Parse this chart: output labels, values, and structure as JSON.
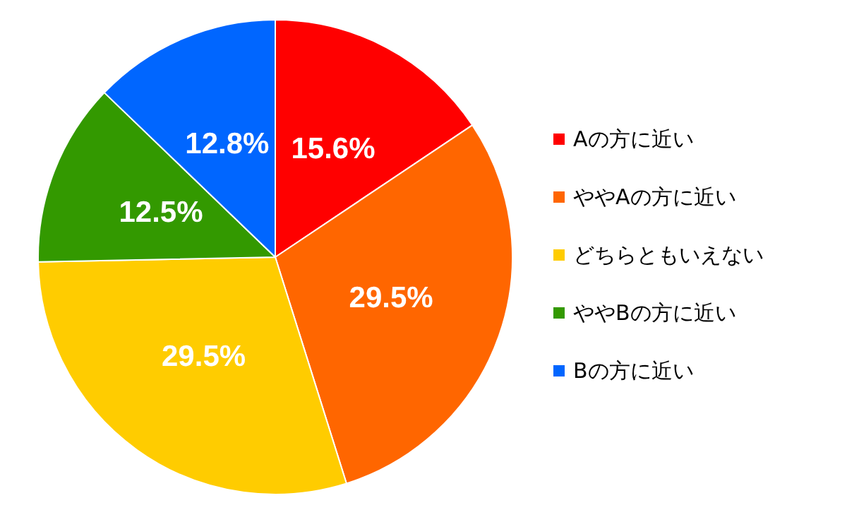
{
  "chart_data": {
    "type": "pie",
    "categories": [
      "Aの方に近い",
      "ややAの方に近い",
      "どちらともいえない",
      "ややBの方に近い",
      "Bの方に近い"
    ],
    "values": [
      15.6,
      29.5,
      29.5,
      12.5,
      12.8
    ],
    "colors": [
      "#ff0000",
      "#ff6600",
      "#ffcc00",
      "#339900",
      "#0066ff"
    ],
    "value_labels": [
      "15.6%",
      "29.5%",
      "29.5%",
      "12.5%",
      "12.8%"
    ],
    "legend": "right"
  }
}
